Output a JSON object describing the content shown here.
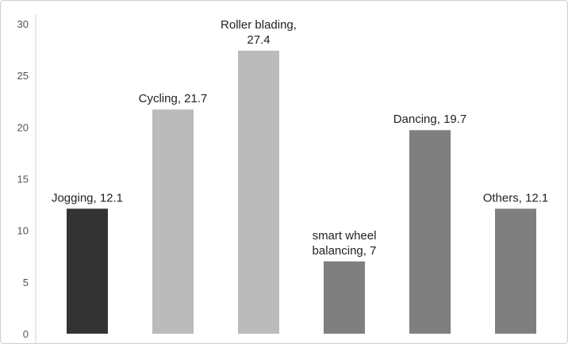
{
  "chart_data": {
    "type": "bar",
    "categories": [
      "Jogging",
      "Cycling",
      "Roller blading",
      "smart wheel balancing",
      "Dancing",
      "Others"
    ],
    "values": [
      12.1,
      21.7,
      27.4,
      7,
      19.7,
      12.1
    ],
    "value_labels": [
      "Jogging, 12.1",
      "Cycling, 21.7",
      "Roller blading, 27.4",
      "smart wheel balancing, 7",
      "Dancing, 19.7",
      "Others, 12.1"
    ],
    "colors": [
      "#333333",
      "#bbbbbb",
      "#bbbbbb",
      "#7f7f7f",
      "#7f7f7f",
      "#7f7f7f"
    ],
    "ylim": [
      0,
      30
    ],
    "yticks": [
      0,
      5,
      10,
      15,
      20,
      25,
      30
    ],
    "grid": false
  }
}
